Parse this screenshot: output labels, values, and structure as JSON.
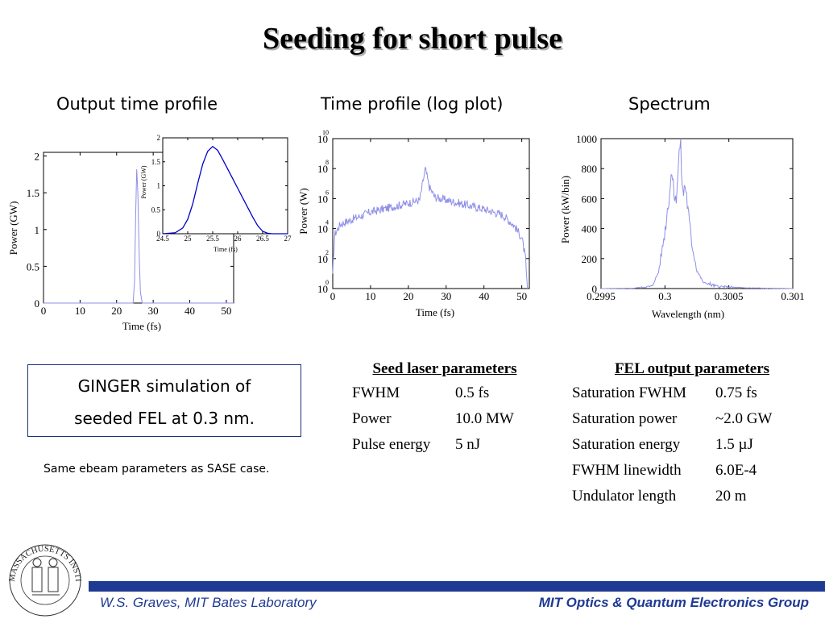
{
  "slide": {
    "title": "Seeding for short pulse",
    "headings": {
      "output_time": "Output time profile",
      "log_plot": "Time profile (log plot)",
      "spectrum": "Spectrum"
    },
    "ginger_box": {
      "line1": "GINGER simulation of",
      "line2": "seeded FEL at 0.3 nm."
    },
    "note": "Same ebeam parameters as SASE case.",
    "seed_table": {
      "title": "Seed laser parameters",
      "rows": [
        {
          "name": "FWHM",
          "value": "0.5 fs"
        },
        {
          "name": "Power",
          "value": "10.0 MW"
        },
        {
          "name": "Pulse energy",
          "value": "5 nJ"
        }
      ]
    },
    "fel_table": {
      "title": "FEL output parameters",
      "rows": [
        {
          "name": "Saturation FWHM",
          "value": "0.75 fs"
        },
        {
          "name": "Saturation power",
          "value": "~2.0 GW"
        },
        {
          "name": "Saturation energy",
          "value": "1.5 µJ"
        },
        {
          "name": "FWHM linewidth",
          "value": "6.0E-4"
        },
        {
          "name": "Undulator length",
          "value": "20 m"
        }
      ]
    },
    "footer": {
      "left": "W.S. Graves, MIT Bates Laboratory",
      "right": "MIT Optics & Quantum Electronics Group"
    },
    "logo": {
      "text": "MASSACHUSETTS INSTITUTE OF TECHNOLOGY"
    },
    "colors": {
      "curve_main": "#0000cc",
      "curve_light": "#8f8fe8",
      "footer_blue": "#1f3a93"
    }
  },
  "chart_data": [
    {
      "type": "line",
      "name": "output-time-profile",
      "xlabel": "Time (fs)",
      "ylabel": "Power (GW)",
      "xlim": [
        0,
        52
      ],
      "ylim": [
        0,
        2.05
      ],
      "xticks": [
        "0",
        "10",
        "20",
        "30",
        "40",
        "50"
      ],
      "yticks": [
        "0",
        "0.5",
        "1",
        "1.5",
        "2"
      ],
      "x": [
        0,
        24.5,
        24.9,
        25.2,
        25.5,
        25.8,
        26.2,
        26.5,
        27,
        52
      ],
      "y": [
        0,
        0,
        0.3,
        1.2,
        1.82,
        1.5,
        0.6,
        0.15,
        0,
        0
      ]
    },
    {
      "type": "line",
      "name": "output-time-profile-inset",
      "xlabel": "Time (fs)",
      "ylabel": "Power (GW)",
      "xlim": [
        24.5,
        27
      ],
      "ylim": [
        0,
        2
      ],
      "xticks": [
        "24.5",
        "25",
        "25.5",
        "26",
        "26.5",
        "27"
      ],
      "yticks": [
        "0",
        "0.5",
        "1",
        "1.5",
        "2"
      ],
      "x": [
        24.5,
        24.75,
        24.9,
        25.0,
        25.1,
        25.2,
        25.3,
        25.4,
        25.5,
        25.6,
        25.7,
        25.8,
        25.9,
        26.0,
        26.1,
        26.2,
        26.3,
        26.4,
        26.5,
        26.6,
        26.7,
        27.0
      ],
      "y": [
        0,
        0.02,
        0.12,
        0.3,
        0.62,
        1.05,
        1.45,
        1.72,
        1.82,
        1.74,
        1.55,
        1.35,
        1.15,
        0.95,
        0.75,
        0.55,
        0.35,
        0.17,
        0.05,
        0.01,
        0,
        0
      ]
    },
    {
      "type": "line",
      "name": "time-profile-log",
      "xlabel": "Time (fs)",
      "ylabel": "Power (W)",
      "xlim": [
        0,
        52
      ],
      "ylim": [
        0,
        10
      ],
      "yscale": "log",
      "xticks": [
        "0",
        "10",
        "20",
        "30",
        "40",
        "50"
      ],
      "yticks": [
        {
          "base": "10",
          "exp": "0"
        },
        {
          "base": "10",
          "exp": "2"
        },
        {
          "base": "10",
          "exp": "4"
        },
        {
          "base": "10",
          "exp": "6"
        },
        {
          "base": "10",
          "exp": "8"
        },
        {
          "base": "10",
          "exp": "10"
        }
      ],
      "x": [
        0,
        0.5,
        2,
        5,
        10,
        15,
        20,
        23,
        24.5,
        25.5,
        27,
        30,
        35,
        40,
        45,
        48,
        50,
        51,
        51.5
      ],
      "y": [
        1,
        3.6,
        4.3,
        4.6,
        5.1,
        5.4,
        5.7,
        5.9,
        8.0,
        6.8,
        6.1,
        5.9,
        5.6,
        5.3,
        4.9,
        4.2,
        3.4,
        2.0,
        0
      ]
    },
    {
      "type": "line",
      "name": "spectrum",
      "xlabel": "Wavelength (nm)",
      "ylabel": "Power (kW/bin)",
      "xlim": [
        0.2995,
        0.301
      ],
      "ylim": [
        0,
        1000
      ],
      "xticks": [
        "0.2995",
        "0.3",
        "0.3005",
        "0.301"
      ],
      "yticks": [
        "0",
        "200",
        "400",
        "600",
        "800",
        "1000"
      ],
      "x": [
        0.2995,
        0.29975,
        0.2999,
        0.29995,
        0.3,
        0.30004,
        0.30006,
        0.30008,
        0.3001,
        0.30012,
        0.30014,
        0.30016,
        0.30018,
        0.30021,
        0.30025,
        0.3003,
        0.3004,
        0.3006,
        0.3008,
        0.301
      ],
      "y": [
        0,
        2,
        15,
        110,
        380,
        680,
        820,
        540,
        760,
        980,
        620,
        700,
        520,
        300,
        120,
        40,
        15,
        5,
        2,
        0
      ]
    }
  ]
}
